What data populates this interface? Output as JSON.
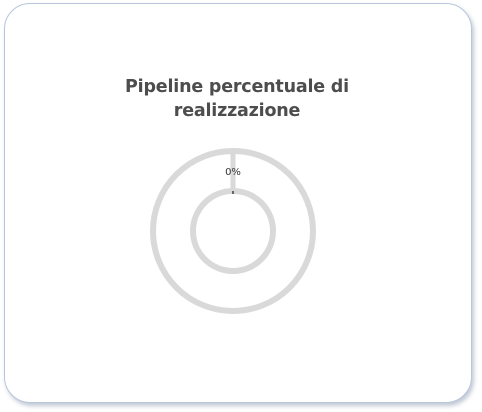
{
  "widget": {
    "title_line1": "Pipeline percentuale di",
    "title_line2": "realizzazione"
  },
  "chart_data": {
    "type": "pie",
    "subtype": "nested-donut",
    "title": "Pipeline percentuale di realizzazione",
    "series": [
      {
        "name": "",
        "values": [
          0
        ],
        "label": "0%"
      },
      {
        "name": "",
        "values": [
          0
        ]
      }
    ],
    "colors": {
      "track": "#d9d9d9",
      "fill": "#d9d9d9",
      "marker": "#666666",
      "label": "#333333"
    }
  }
}
